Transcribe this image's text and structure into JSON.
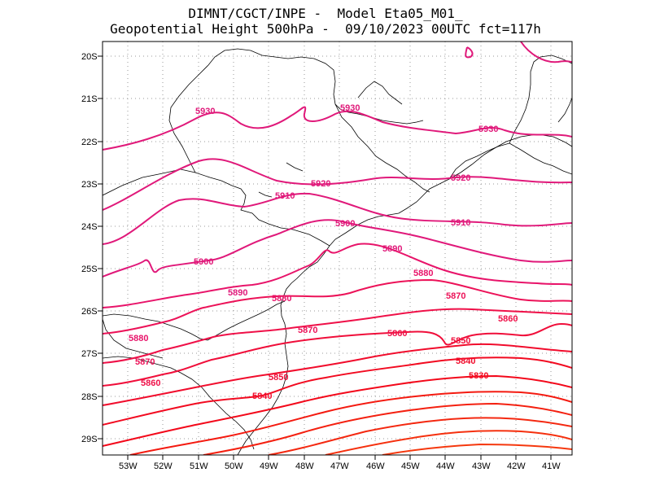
{
  "header": {
    "line1": "DIMNT/CGCT/INPE -  Model Eta05_M01_",
    "line2": "Geopotential Height 500hPa -  09/10/2023 00UTC fct=117h"
  },
  "map": {
    "latitude_labels": [
      "20S",
      "21S",
      "22S",
      "23S",
      "24S",
      "25S",
      "26S",
      "27S",
      "28S",
      "29S"
    ],
    "longitude_labels": [
      "53W",
      "52W",
      "51W",
      "50W",
      "49W",
      "48W",
      "47W",
      "46W",
      "45W",
      "44W",
      "43W",
      "42W",
      "41W"
    ],
    "contour_labels": [
      {
        "text": "5930",
        "color": "#e0197a"
      },
      {
        "text": "5930",
        "color": "#e0197a"
      },
      {
        "text": "5930",
        "color": "#e0197a"
      },
      {
        "text": "5920",
        "color": "#e0197a"
      },
      {
        "text": "5920",
        "color": "#e0197a"
      },
      {
        "text": "5910",
        "color": "#e0197a"
      },
      {
        "text": "5910",
        "color": "#e0197a"
      },
      {
        "text": "5900",
        "color": "#e0197a"
      },
      {
        "text": "5900",
        "color": "#e0197a"
      },
      {
        "text": "5890",
        "color": "#e0197a"
      },
      {
        "text": "5890",
        "color": "#e0197a"
      },
      {
        "text": "5880",
        "color": "#e8146a"
      },
      {
        "text": "5880",
        "color": "#e8146a"
      },
      {
        "text": "5880",
        "color": "#e8146a"
      },
      {
        "text": "5870",
        "color": "#ec1258"
      },
      {
        "text": "5870",
        "color": "#ec1258"
      },
      {
        "text": "5870",
        "color": "#ec1258"
      },
      {
        "text": "5860",
        "color": "#ef1048"
      },
      {
        "text": "5860",
        "color": "#ef1048"
      },
      {
        "text": "5860",
        "color": "#ef1048"
      },
      {
        "text": "5850",
        "color": "#f00e3a"
      },
      {
        "text": "5850",
        "color": "#f00e3a"
      },
      {
        "text": "5840",
        "color": "#f10c2c"
      },
      {
        "text": "5840",
        "color": "#f10c2c"
      },
      {
        "text": "5830",
        "color": "#f20a20"
      }
    ],
    "colors": {
      "contour_high": "#e0197a",
      "contour_low": "#f21a0a",
      "coastline": "#000000",
      "grid": "#9a9a9a"
    }
  }
}
